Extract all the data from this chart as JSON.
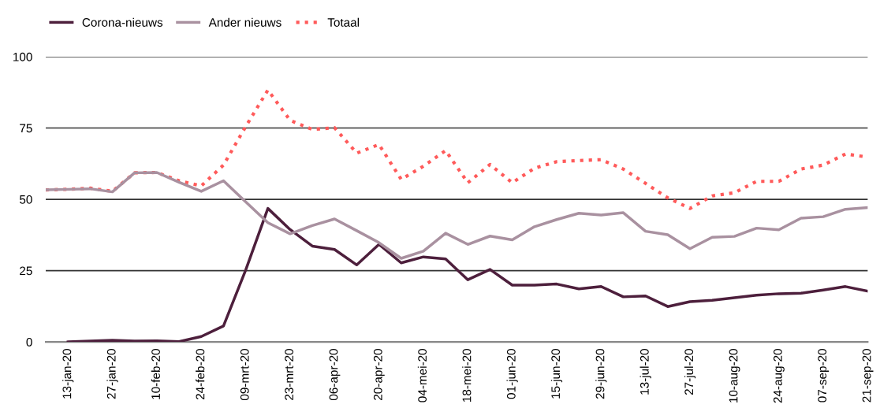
{
  "chart_data": {
    "type": "line",
    "categories": [
      null,
      "13-jan-20",
      null,
      "27-jan-20",
      null,
      "10-feb-20",
      null,
      "24-feb-20",
      null,
      "09-mrt-20",
      null,
      "23-mrt-20",
      null,
      "06-apr-20",
      null,
      "20-apr-20",
      null,
      "04-mei-20",
      null,
      "18-mei-20",
      null,
      "01-jun-20",
      null,
      "15-jun-20",
      null,
      "29-jun-20",
      null,
      "13-jul-20",
      null,
      "27-jul-20",
      null,
      "10-aug-20",
      null,
      "24-aug-20",
      null,
      "07-sep-20",
      null,
      "21-sep-20"
    ],
    "series": [
      {
        "name": "Corona-nieuws",
        "color": "#4d1f3c",
        "line_style": "solid",
        "values": [
          null,
          0,
          0.3,
          0.6,
          0.3,
          0.4,
          0.1,
          1.9,
          5.6,
          25.2,
          46.8,
          39.4,
          33.6,
          32.4,
          27.0,
          34.2,
          27.7,
          29.8,
          29.1,
          21.8,
          25.4,
          19.9,
          19.9,
          20.3,
          18.6,
          19.4,
          15.8,
          16.1,
          12.4,
          14.1,
          14.6,
          15.5,
          16.4,
          16.9,
          17.1,
          18.2,
          19.4,
          17.8
        ]
      },
      {
        "name": "Ander nieuws",
        "color": "#a991a0",
        "line_style": "solid",
        "values": [
          53.3,
          53.5,
          53.7,
          52.6,
          59.3,
          59.4,
          56.0,
          52.8,
          56.5,
          49.1,
          41.8,
          37.9,
          40.8,
          43.1,
          39.0,
          34.8,
          29.3,
          31.8,
          38.1,
          34.2,
          37.1,
          35.8,
          40.4,
          42.9,
          45.1,
          44.5,
          45.3,
          38.8,
          37.6,
          32.7,
          36.7,
          37.0,
          39.9,
          39.3,
          43.4,
          43.9,
          46.5,
          47.1
        ]
      },
      {
        "name": "Totaal",
        "color": "#ff5a5a",
        "line_style": "dotted",
        "values": [
          53.3,
          53.5,
          53.9,
          52.8,
          59.3,
          59.4,
          56.5,
          54.7,
          62.0,
          75.5,
          88.3,
          77.7,
          74.5,
          75.1,
          66.2,
          69.2,
          57.0,
          61.6,
          67.1,
          55.8,
          62.2,
          55.8,
          60.9,
          63.2,
          63.6,
          63.9,
          60.6,
          55.6,
          50.5,
          46.8,
          51.2,
          52.3,
          56.3,
          56.3,
          60.6,
          62.0,
          65.9,
          64.8
        ]
      }
    ],
    "ylim": [
      0,
      100
    ],
    "yticks": [
      0,
      25,
      50,
      75,
      100
    ],
    "grid": "y",
    "legend": "top left",
    "marker": "none"
  }
}
